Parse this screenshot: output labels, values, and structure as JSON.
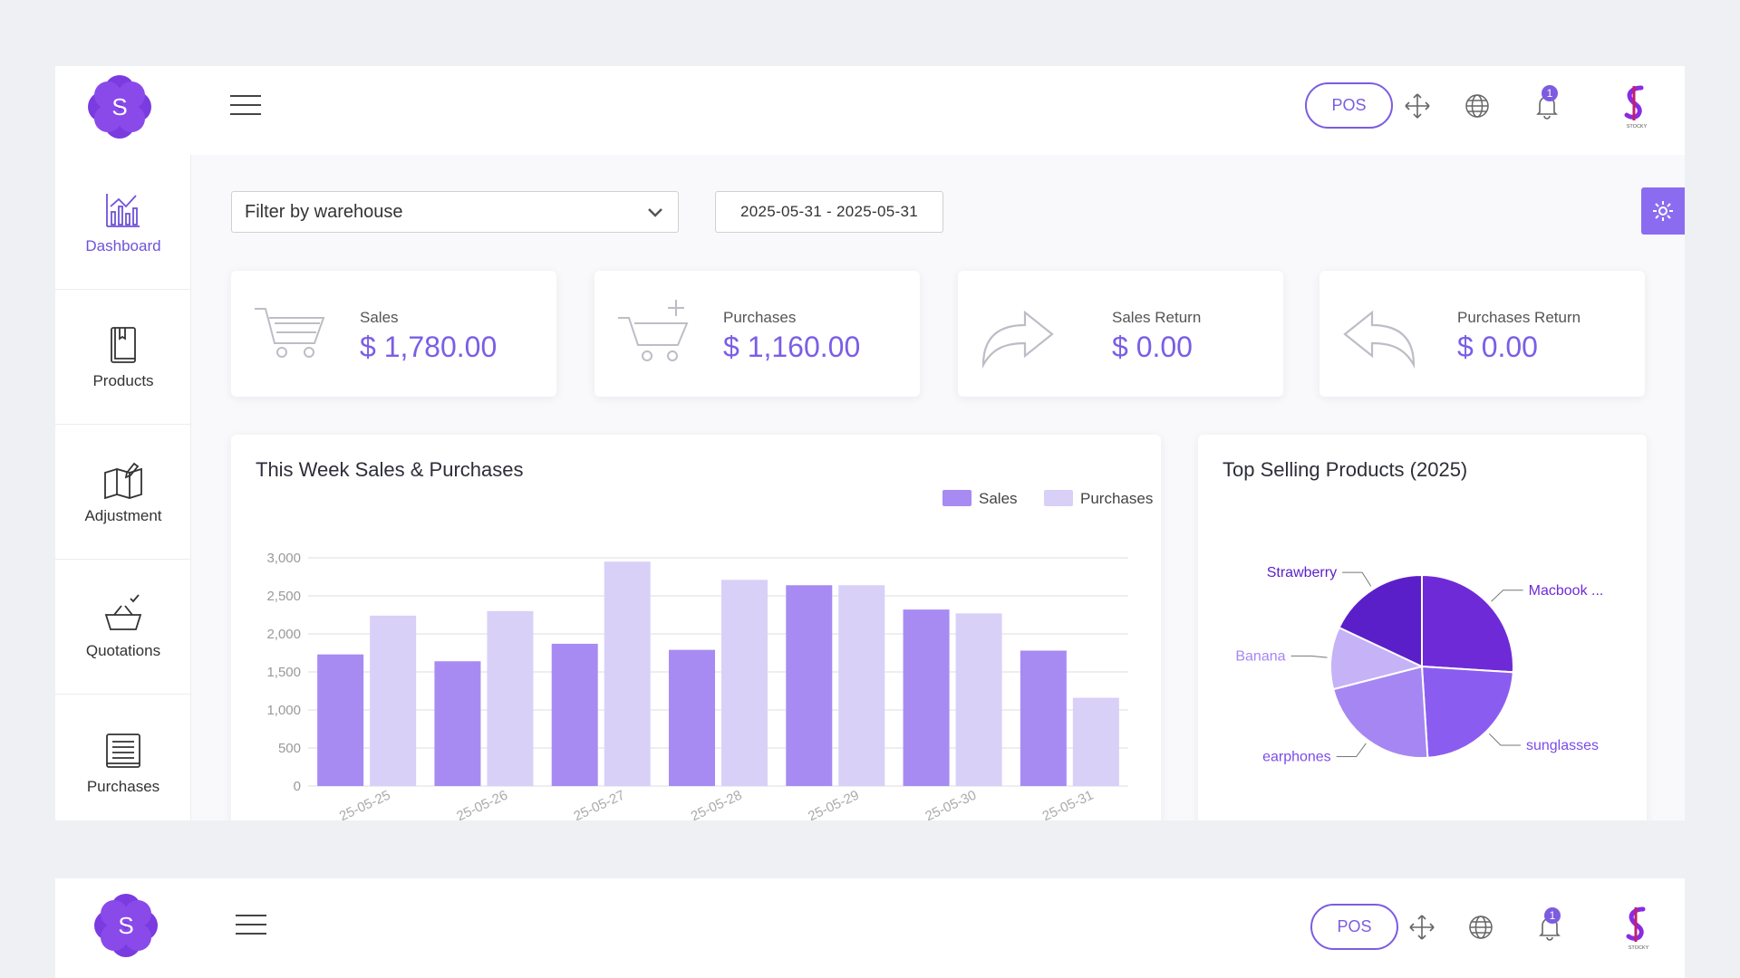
{
  "header": {
    "pos_label": "POS",
    "notification_count": "1",
    "logo_letter": "S",
    "brand_text": "STOCKY"
  },
  "sidebar": {
    "items": [
      {
        "label": "Dashboard",
        "icon": "bar-chart-icon",
        "active": true
      },
      {
        "label": "Products",
        "icon": "book-icon"
      },
      {
        "label": "Adjustment",
        "icon": "map-edit-icon"
      },
      {
        "label": "Quotations",
        "icon": "basket-check-icon"
      },
      {
        "label": "Purchases",
        "icon": "receipt-icon"
      }
    ]
  },
  "filters": {
    "warehouse_placeholder": "Filter by warehouse",
    "date_range": "2025-05-31 - 2025-05-31"
  },
  "stats": [
    {
      "title": "Sales",
      "value": "$ 1,780.00",
      "icon": "cart-icon"
    },
    {
      "title": "Purchases",
      "value": "$ 1,160.00",
      "icon": "cart-plus-icon"
    },
    {
      "title": "Sales Return",
      "value": "$ 0.00",
      "icon": "arrow-forward-icon"
    },
    {
      "title": "Purchases Return",
      "value": "$ 0.00",
      "icon": "arrow-back-icon"
    }
  ],
  "colors": {
    "accent": "#7c5ce0",
    "sales": "#a78bf2",
    "purchases": "#d9d0f8"
  },
  "chart_data": [
    {
      "type": "bar",
      "title": "This Week Sales & Purchases",
      "categories": [
        "25-05-25",
        "25-05-26",
        "25-05-27",
        "25-05-28",
        "25-05-29",
        "25-05-30",
        "25-05-31"
      ],
      "series": [
        {
          "name": "Sales",
          "values": [
            1730,
            1640,
            1870,
            1790,
            2640,
            2320,
            1780
          ]
        },
        {
          "name": "Purchases",
          "values": [
            2240,
            2300,
            2950,
            2710,
            2640,
            2270,
            1160
          ]
        }
      ],
      "yticks": [
        "0",
        "500",
        "1,000",
        "1,500",
        "2,000",
        "2,500",
        "3,000"
      ],
      "ylim": [
        0,
        3000
      ],
      "legend": "top-right",
      "grid": true
    },
    {
      "type": "pie",
      "title": "Top Selling Products (2025)",
      "labels": [
        "Macbook ...",
        "sunglasses",
        "earphones",
        "Banana",
        "Strawberry"
      ],
      "values": [
        26,
        23,
        22,
        11,
        18
      ],
      "colors": [
        "#6f2ad8",
        "#8b5cf0",
        "#a686f2",
        "#c5b2f7",
        "#5b1fc9"
      ]
    }
  ]
}
